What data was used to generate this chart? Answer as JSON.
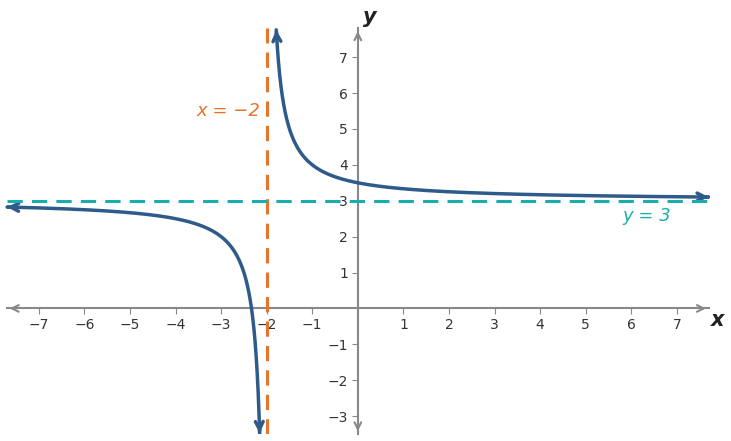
{
  "func_color": "#2E5B8A",
  "asymptote_v_color": "#E8732A",
  "asymptote_h_color": "#1AADAD",
  "background_color": "#ffffff",
  "xlim": [
    -7.7,
    7.7
  ],
  "ylim": [
    -3.5,
    7.8
  ],
  "xticks": [
    -7,
    -6,
    -5,
    -4,
    -3,
    -2,
    -1,
    1,
    2,
    3,
    4,
    5,
    6,
    7
  ],
  "yticks": [
    -3,
    -2,
    -1,
    1,
    2,
    3,
    4,
    5,
    6,
    7
  ],
  "vertical_asymptote": -2,
  "horizontal_asymptote": 3,
  "xlabel": "x",
  "ylabel": "y",
  "label_va": "x = −2",
  "label_ha": "y = 3",
  "func_linewidth": 2.5,
  "asymptote_linewidth": 2.2,
  "axis_color": "#888888",
  "tick_color": "#333333",
  "axis_linewidth": 1.5
}
